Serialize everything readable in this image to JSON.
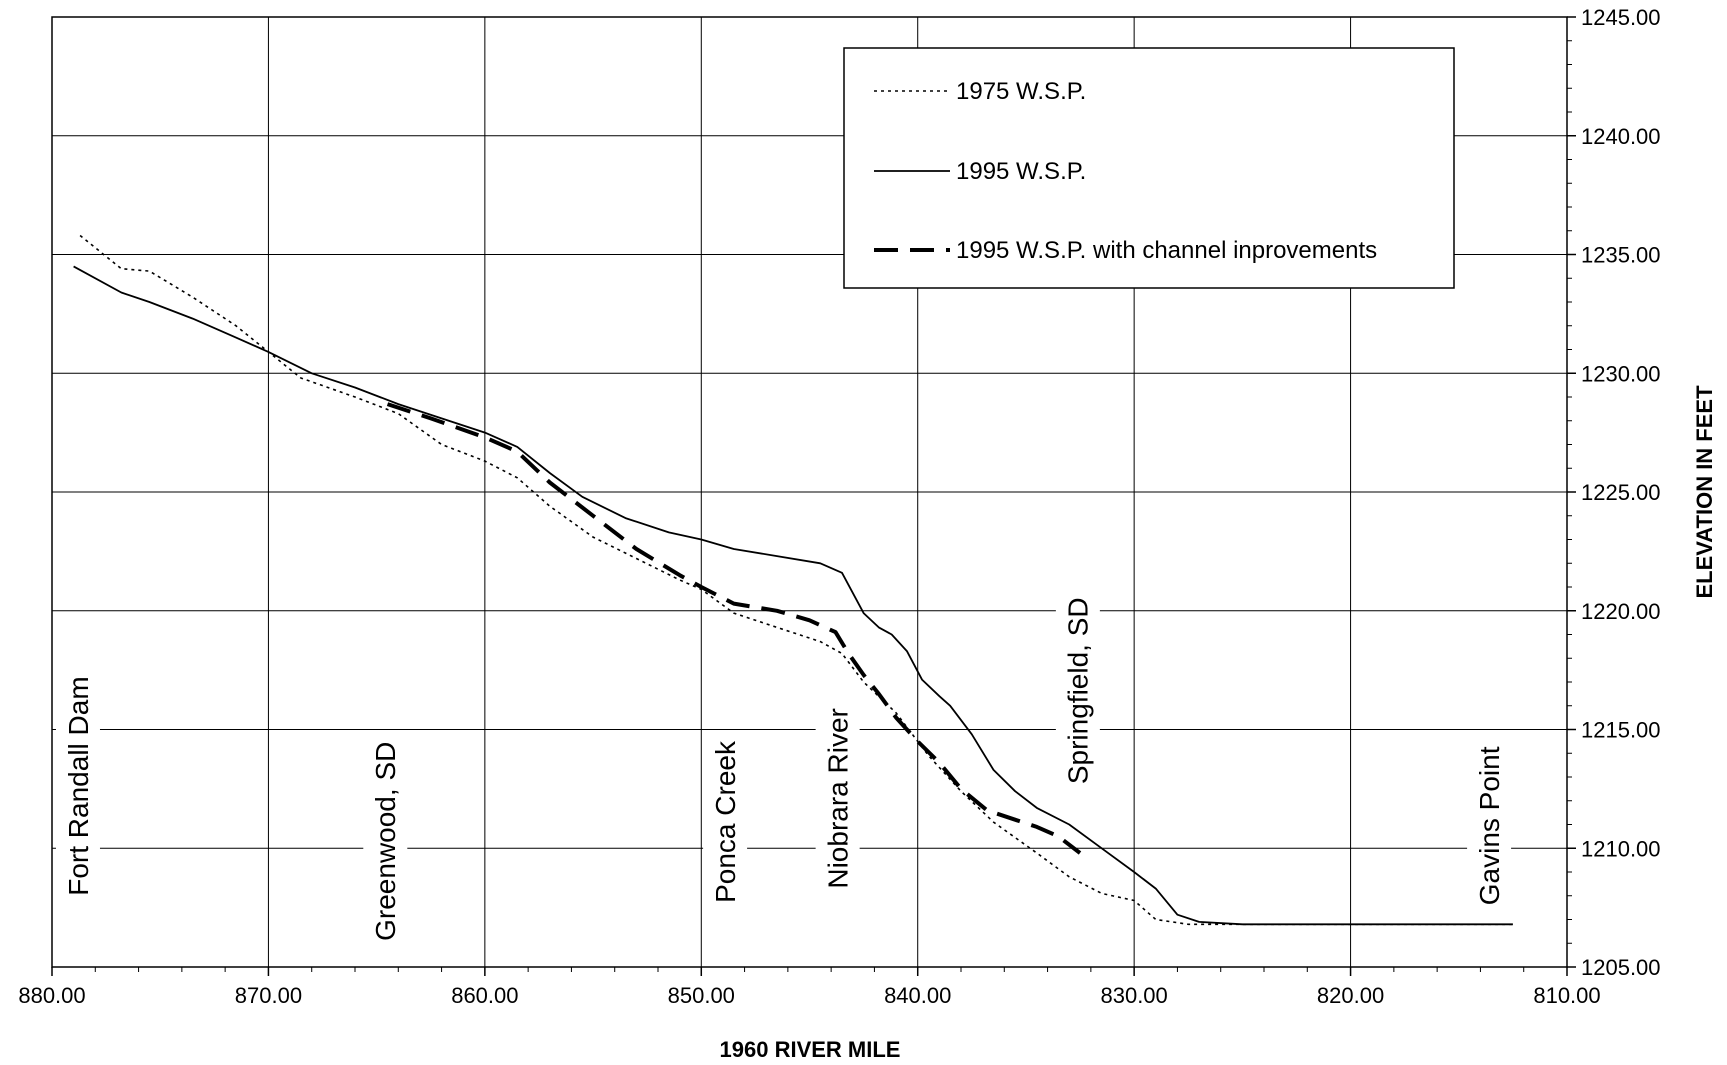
{
  "chart_data": {
    "type": "line",
    "title": "",
    "xlabel": "1960 RIVER MILE",
    "ylabel": "ELEVATION IN FEET",
    "xlim": [
      880,
      810
    ],
    "x_reversed": true,
    "ylim": [
      1205,
      1245
    ],
    "x_ticks": [
      "880.00",
      "870.00",
      "860.00",
      "850.00",
      "840.00",
      "830.00",
      "820.00",
      "810.00"
    ],
    "y_ticks": [
      "1205.00",
      "1210.00",
      "1215.00",
      "1220.00",
      "1225.00",
      "1230.00",
      "1235.00",
      "1240.00",
      "1245.00"
    ],
    "grid": true,
    "legend_position": "top-right",
    "series": [
      {
        "name": "1975 W.S.P.",
        "style": "dotted",
        "color": "#000000",
        "points": [
          [
            878.7,
            1235.8
          ],
          [
            876.8,
            1234.4
          ],
          [
            875.5,
            1234.3
          ],
          [
            873.5,
            1233.2
          ],
          [
            871.5,
            1232.0
          ],
          [
            870.0,
            1230.9
          ],
          [
            868.5,
            1229.8
          ],
          [
            866.0,
            1229.0
          ],
          [
            864.0,
            1228.3
          ],
          [
            862.0,
            1227.0
          ],
          [
            860.0,
            1226.3
          ],
          [
            858.5,
            1225.6
          ],
          [
            857.0,
            1224.4
          ],
          [
            855.0,
            1223.1
          ],
          [
            853.0,
            1222.2
          ],
          [
            851.0,
            1221.3
          ],
          [
            850.0,
            1220.9
          ],
          [
            848.5,
            1219.9
          ],
          [
            846.5,
            1219.3
          ],
          [
            844.5,
            1218.7
          ],
          [
            843.5,
            1218.2
          ],
          [
            842.5,
            1217.0
          ],
          [
            841.0,
            1215.7
          ],
          [
            839.5,
            1213.9
          ],
          [
            838.0,
            1212.4
          ],
          [
            836.5,
            1211.1
          ],
          [
            834.5,
            1209.8
          ],
          [
            833.0,
            1208.8
          ],
          [
            831.5,
            1208.1
          ],
          [
            830.0,
            1207.8
          ],
          [
            829.0,
            1207.0
          ],
          [
            827.5,
            1206.8
          ],
          [
            825.0,
            1206.8
          ],
          [
            812.5,
            1206.8
          ]
        ]
      },
      {
        "name": "1995 W.S.P.",
        "style": "solid",
        "color": "#000000",
        "points": [
          [
            879.0,
            1234.5
          ],
          [
            876.8,
            1233.4
          ],
          [
            875.5,
            1233.0
          ],
          [
            873.5,
            1232.3
          ],
          [
            871.5,
            1231.5
          ],
          [
            870.0,
            1230.9
          ],
          [
            868.0,
            1230.0
          ],
          [
            866.0,
            1229.4
          ],
          [
            864.0,
            1228.7
          ],
          [
            862.0,
            1228.1
          ],
          [
            860.0,
            1227.5
          ],
          [
            858.5,
            1226.9
          ],
          [
            857.0,
            1225.8
          ],
          [
            855.5,
            1224.8
          ],
          [
            853.5,
            1223.9
          ],
          [
            851.5,
            1223.3
          ],
          [
            850.0,
            1223.0
          ],
          [
            848.5,
            1222.6
          ],
          [
            846.5,
            1222.3
          ],
          [
            844.5,
            1222.0
          ],
          [
            843.5,
            1221.6
          ],
          [
            842.5,
            1219.9
          ],
          [
            841.8,
            1219.3
          ],
          [
            841.2,
            1219.0
          ],
          [
            840.5,
            1218.3
          ],
          [
            839.8,
            1217.1
          ],
          [
            839.0,
            1216.4
          ],
          [
            838.5,
            1216.0
          ],
          [
            837.5,
            1214.8
          ],
          [
            836.5,
            1213.3
          ],
          [
            835.5,
            1212.4
          ],
          [
            834.5,
            1211.7
          ],
          [
            833.0,
            1211.0
          ],
          [
            831.5,
            1210.0
          ],
          [
            830.0,
            1209.0
          ],
          [
            829.0,
            1208.3
          ],
          [
            828.0,
            1207.2
          ],
          [
            827.0,
            1206.9
          ],
          [
            825.0,
            1206.8
          ],
          [
            812.5,
            1206.8
          ]
        ]
      },
      {
        "name": "1995 W.S.P. with channel inprovements",
        "style": "dashed",
        "color": "#000000",
        "points": [
          [
            864.5,
            1228.7
          ],
          [
            862.5,
            1228.1
          ],
          [
            860.0,
            1227.3
          ],
          [
            858.5,
            1226.7
          ],
          [
            857.0,
            1225.4
          ],
          [
            855.0,
            1224.0
          ],
          [
            853.0,
            1222.6
          ],
          [
            851.0,
            1221.5
          ],
          [
            850.0,
            1221.0
          ],
          [
            848.5,
            1220.3
          ],
          [
            846.5,
            1220.0
          ],
          [
            845.0,
            1219.6
          ],
          [
            843.8,
            1219.1
          ],
          [
            843.2,
            1218.2
          ],
          [
            842.5,
            1217.3
          ],
          [
            841.8,
            1216.5
          ],
          [
            841.0,
            1215.5
          ],
          [
            840.0,
            1214.5
          ],
          [
            839.0,
            1213.6
          ],
          [
            838.0,
            1212.5
          ],
          [
            836.8,
            1211.6
          ],
          [
            835.5,
            1211.2
          ],
          [
            834.5,
            1210.9
          ],
          [
            833.5,
            1210.5
          ],
          [
            832.5,
            1209.8
          ]
        ]
      }
    ],
    "annotations": [
      "Fort Randall Dam",
      "Greenwood, SD",
      "Ponca Creek",
      "Niobrara River",
      "Springfield, SD",
      "Gavins Point"
    ]
  }
}
